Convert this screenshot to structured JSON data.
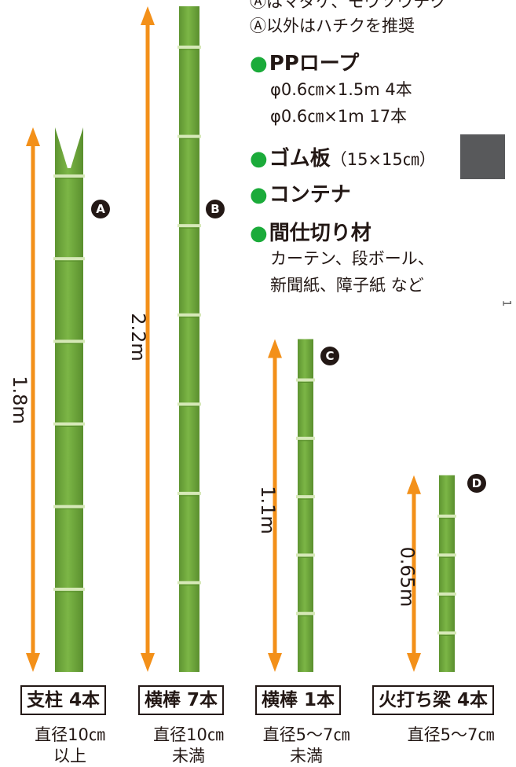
{
  "legend": {
    "line_top": "Ⓐはマダケ、モウソウチク",
    "line_a": "Ⓐ以外はハチクを推奨",
    "pp_rope": {
      "label": "PPロープ",
      "detail1": "φ0.6㎝×1.5m 4本",
      "detail2": "φ0.6㎝×1m 17本"
    },
    "rubber_plate": {
      "label": "ゴム板",
      "detail": "（15×15㎝）",
      "swatch_color": "#58595b"
    },
    "container": {
      "label": "コンテナ"
    },
    "partition": {
      "label": "間仕切り材",
      "detail1": "カーテン、段ボール、",
      "detail2": "新聞紙、障子紙 など"
    },
    "bullet_color": "#1bab3a",
    "side_fragment": "1"
  },
  "poles": [
    {
      "id": "A",
      "length": "1.8m",
      "name": "支柱 4本",
      "spec1": "直径10㎝",
      "spec2": "以上",
      "length_m": 1.8,
      "notched": true
    },
    {
      "id": "B",
      "length": "2.2m",
      "name": "横棒 7本",
      "spec1": "直径10㎝",
      "spec2": "未満",
      "length_m": 2.2,
      "notched": false
    },
    {
      "id": "C",
      "length": "1.1m",
      "name": "横棒 1本",
      "spec1": "直径5〜7㎝",
      "spec2": "未満",
      "length_m": 1.1,
      "notched": false
    },
    {
      "id": "D",
      "length": "0.65m",
      "name": "火打ち梁 4本",
      "spec1": "直径5〜7㎝",
      "spec2": "",
      "length_m": 0.65,
      "notched": false
    }
  ],
  "colors": {
    "arrow": "#f39019",
    "bamboo": "#72ac3d",
    "bamboo_dark": "#5a8f2e",
    "node": "#d6e8b8"
  }
}
